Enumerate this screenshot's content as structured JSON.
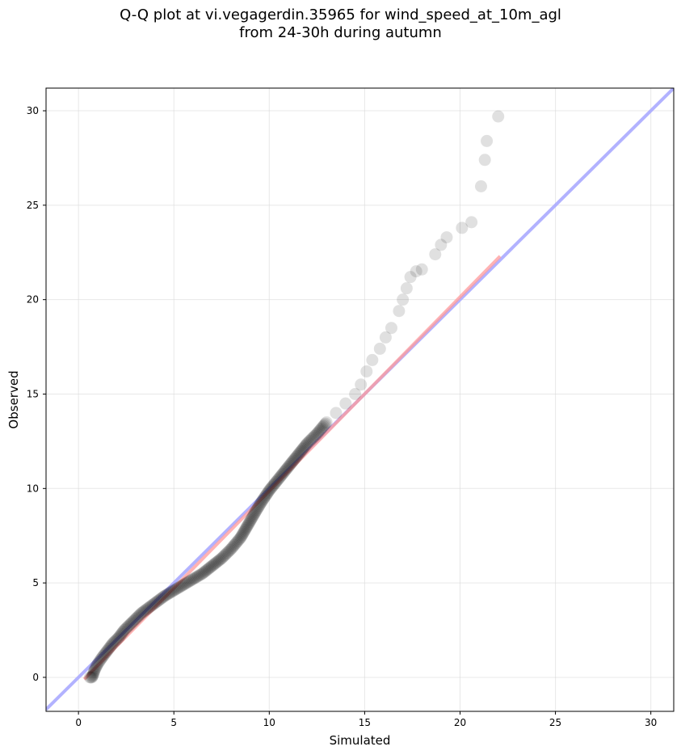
{
  "chart_data": {
    "type": "scatter",
    "title_lines": [
      "Q-Q plot at vi.vegagerdin.35965 for wind_speed_at_10m_agl",
      "from 24-30h during autumn"
    ],
    "xlabel": "Simulated",
    "ylabel": "Observed",
    "xlim": [
      -1.7,
      31.2
    ],
    "ylim": [
      -1.8,
      31.2
    ],
    "xticks": [
      0,
      5,
      10,
      15,
      20,
      25,
      30
    ],
    "yticks": [
      0,
      5,
      10,
      15,
      20,
      25,
      30
    ],
    "grid": true,
    "series": [
      {
        "kind": "quantile-points",
        "color": "#000000",
        "description_points": [
          [
            0.6,
            0.0
          ],
          [
            0.7,
            0.0
          ],
          [
            0.75,
            0.1
          ],
          [
            0.85,
            0.4
          ],
          [
            1.0,
            0.7
          ],
          [
            1.2,
            1.0
          ],
          [
            1.5,
            1.4
          ],
          [
            1.8,
            1.8
          ],
          [
            2.1,
            2.1
          ],
          [
            2.4,
            2.5
          ],
          [
            2.7,
            2.8
          ],
          [
            3.0,
            3.1
          ],
          [
            3.3,
            3.4
          ],
          [
            3.7,
            3.7
          ],
          [
            4.1,
            4.0
          ],
          [
            4.5,
            4.3
          ],
          [
            5.0,
            4.6
          ],
          [
            5.5,
            4.9
          ],
          [
            6.0,
            5.2
          ],
          [
            6.5,
            5.5
          ],
          [
            7.0,
            5.9
          ],
          [
            7.5,
            6.3
          ],
          [
            8.0,
            6.8
          ],
          [
            8.5,
            7.4
          ],
          [
            8.9,
            8.1
          ],
          [
            9.3,
            8.8
          ],
          [
            9.6,
            9.3
          ],
          [
            10.0,
            9.9
          ],
          [
            10.4,
            10.4
          ],
          [
            10.8,
            10.9
          ],
          [
            11.2,
            11.4
          ],
          [
            11.6,
            11.9
          ],
          [
            12.0,
            12.4
          ],
          [
            12.5,
            12.9
          ],
          [
            13.0,
            13.5
          ],
          [
            13.5,
            14.0
          ],
          [
            14.0,
            14.5
          ],
          [
            14.5,
            15.0
          ],
          [
            14.8,
            15.5
          ],
          [
            15.1,
            16.2
          ],
          [
            15.4,
            16.8
          ],
          [
            15.8,
            17.4
          ],
          [
            16.1,
            18.0
          ],
          [
            16.4,
            18.5
          ],
          [
            16.8,
            19.4
          ],
          [
            17.0,
            20.0
          ],
          [
            17.2,
            20.6
          ],
          [
            17.4,
            21.2
          ],
          [
            17.7,
            21.5
          ],
          [
            18.0,
            21.6
          ],
          [
            18.7,
            22.4
          ],
          [
            19.0,
            22.9
          ],
          [
            19.3,
            23.3
          ],
          [
            20.1,
            23.8
          ],
          [
            20.6,
            24.1
          ],
          [
            21.1,
            26.0
          ],
          [
            21.3,
            27.4
          ],
          [
            21.4,
            28.4
          ],
          [
            22.0,
            29.7
          ]
        ]
      }
    ],
    "reference_lines": [
      {
        "name": "",
        "color": "#aaaaff",
        "from": [
          -1.7,
          -1.7
        ],
        "to": [
          31.2,
          31.2
        ]
      },
      {
        "name": "",
        "color": "#ff9999",
        "from": [
          0.3,
          -0.1
        ],
        "to": [
          22.1,
          22.3
        ]
      }
    ]
  }
}
